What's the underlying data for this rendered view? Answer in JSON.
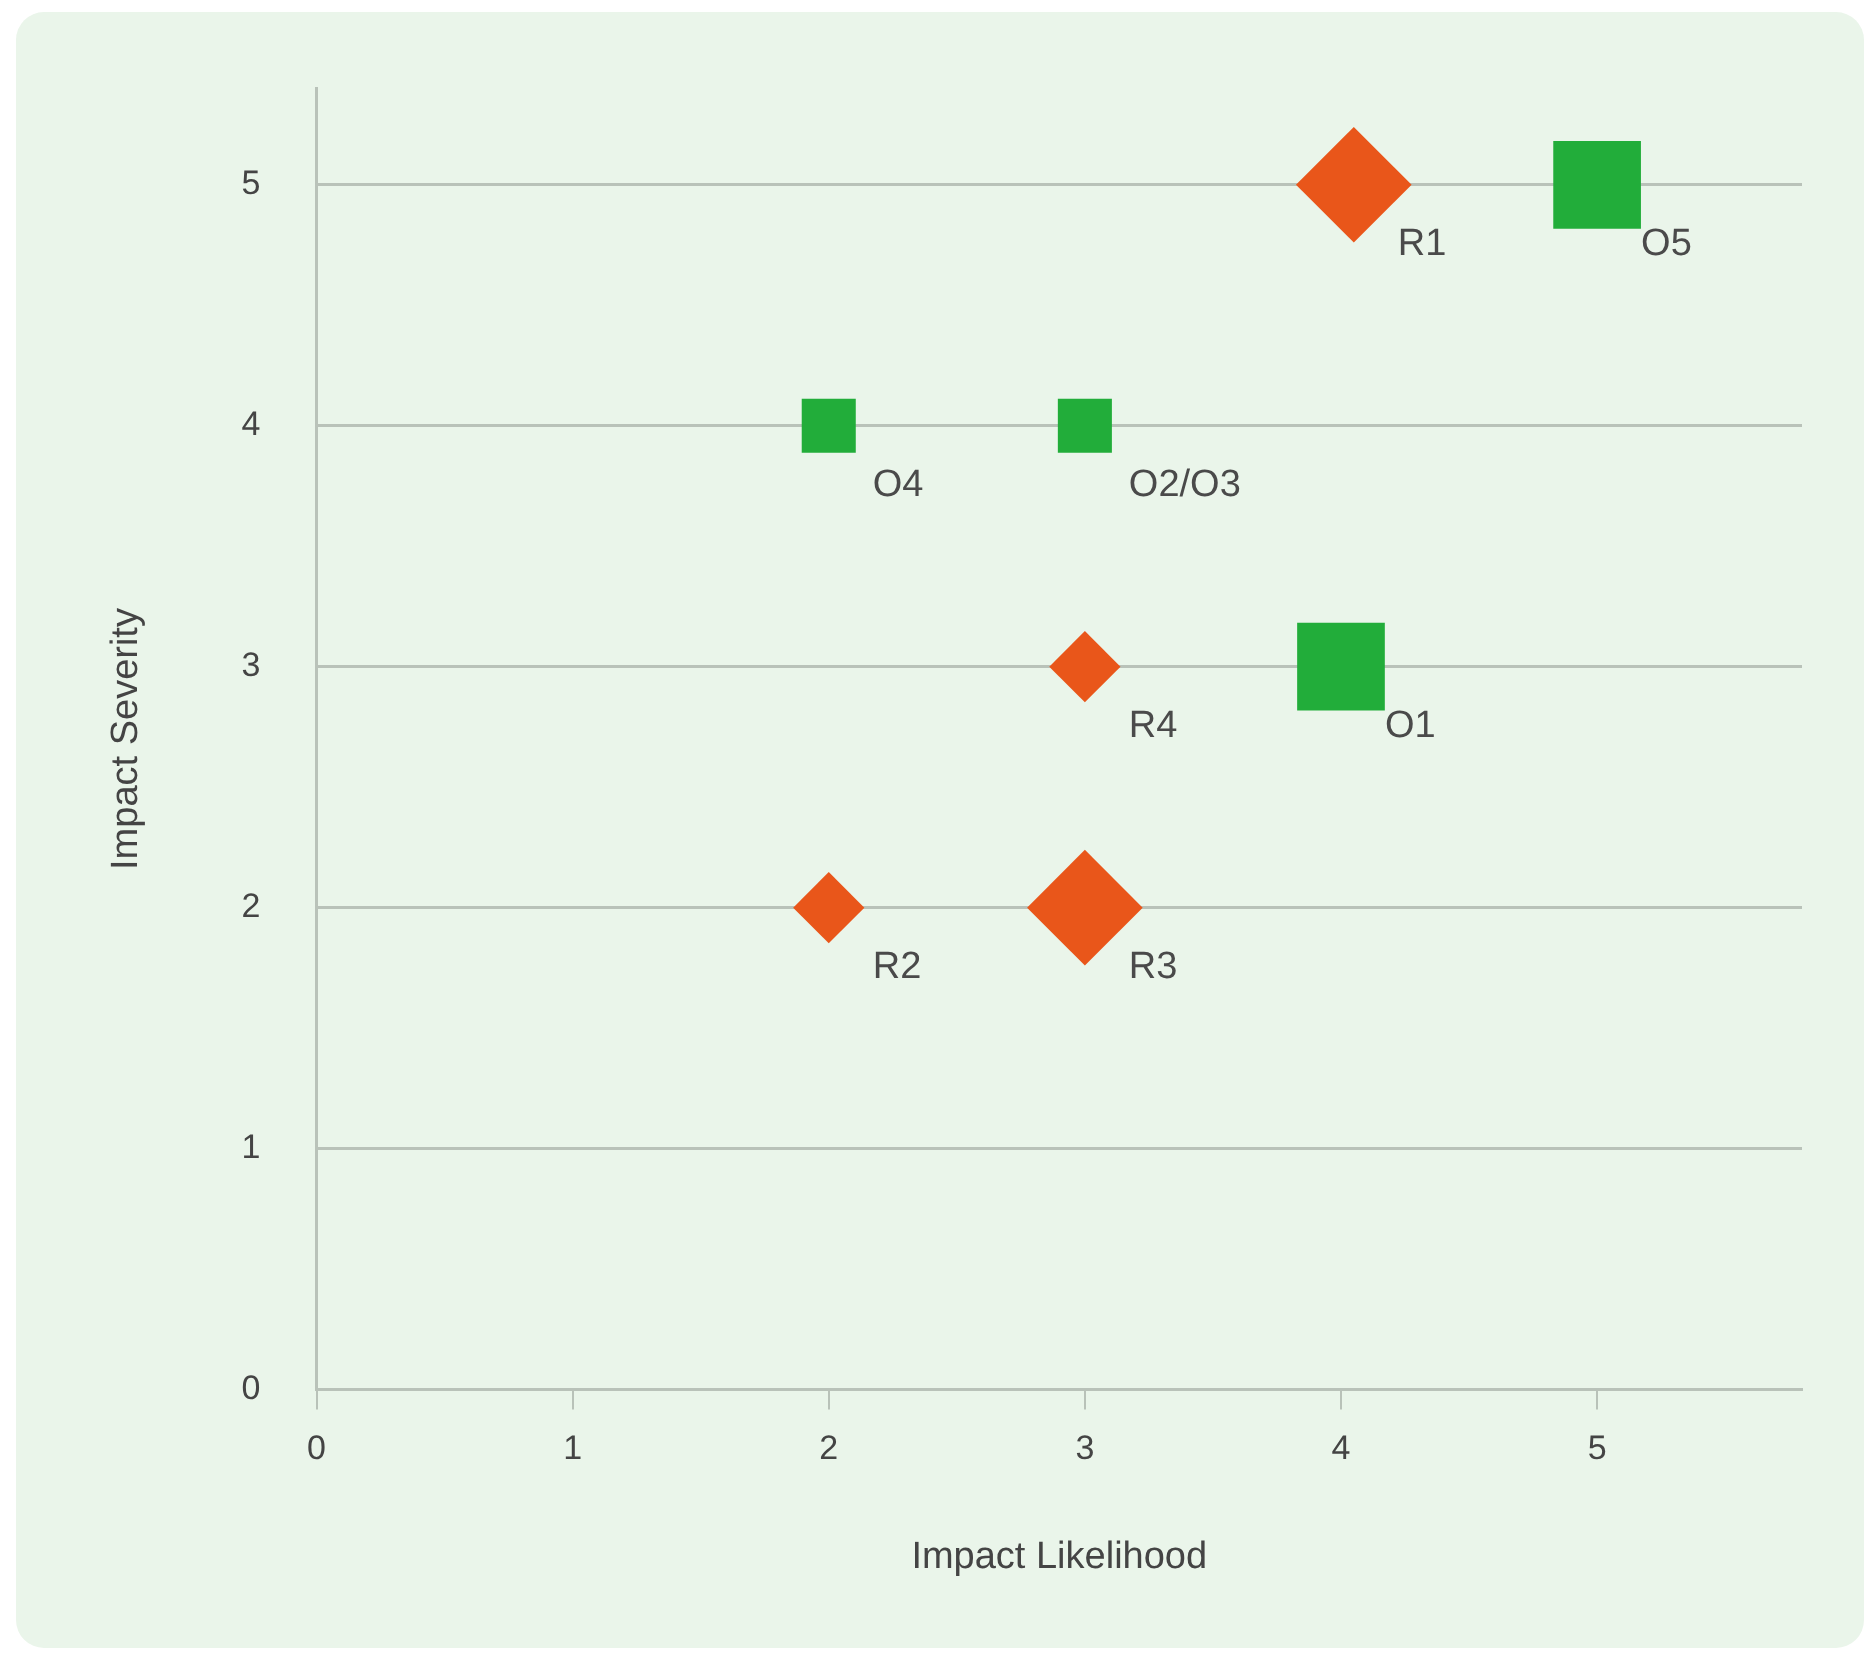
{
  "chart_data": {
    "type": "bubble",
    "xlabel": "Impact Likelihood",
    "ylabel": "Impact Severity",
    "xlim": [
      0,
      5.8
    ],
    "xticks": [
      0,
      1,
      2,
      3,
      4,
      5
    ],
    "ylim": [
      0,
      5.4
    ],
    "yticks": [
      0,
      1,
      2,
      3,
      4,
      5
    ],
    "grid": "y",
    "legend": false,
    "series": [
      {
        "color": "#e9561a",
        "marker": "diamond",
        "x": [
          4.05,
          2,
          3,
          3
        ],
        "values": [
          5,
          2,
          2,
          3
        ],
        "sizes": [
          0.87,
          0.33,
          0.87,
          0.33
        ]
      },
      {
        "color": "#22ad3a",
        "marker": "square",
        "x": [
          5,
          2,
          3,
          4
        ],
        "values": [
          5,
          4,
          4,
          3
        ],
        "sizes": [
          1,
          0.38,
          0.38,
          1
        ]
      }
    ],
    "annotations": [
      {
        "text": "R1",
        "x": 4.05,
        "y": 5
      },
      {
        "text": "O5",
        "x": 5,
        "y": 5
      },
      {
        "text": "O4",
        "x": 2,
        "y": 4
      },
      {
        "text": "O2/O3",
        "x": 3,
        "y": 4
      },
      {
        "text": "R4",
        "x": 3,
        "y": 3
      },
      {
        "text": "O1",
        "x": 4,
        "y": 3
      },
      {
        "text": "R2",
        "x": 2,
        "y": 2
      },
      {
        "text": "R3",
        "x": 3,
        "y": 2
      }
    ]
  }
}
